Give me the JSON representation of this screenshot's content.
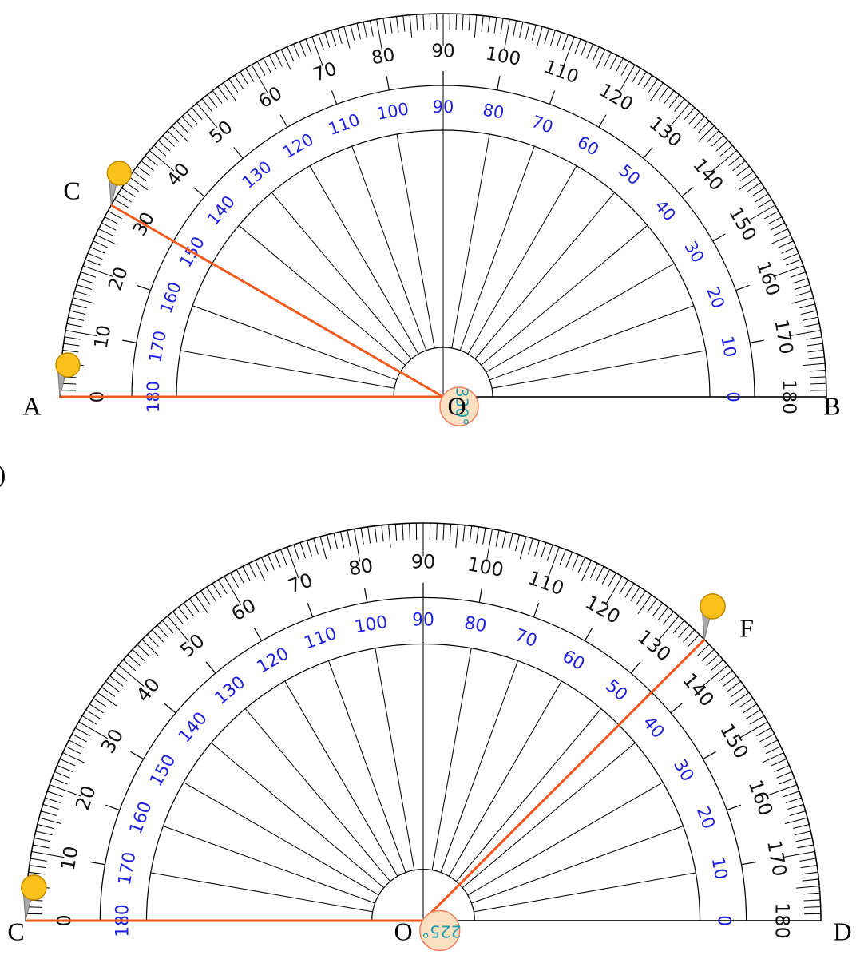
{
  "caption": ")",
  "scale": [
    0,
    10,
    20,
    30,
    40,
    50,
    60,
    70,
    80,
    90,
    100,
    110,
    120,
    130,
    140,
    150,
    160,
    170,
    180
  ],
  "protractors": [
    {
      "labels": [
        "C",
        "A",
        "O",
        "B"
      ],
      "angle_label": "330°"
    },
    {
      "labels": [
        "F",
        "C",
        "O",
        "D"
      ],
      "angle_label": "225°"
    }
  ]
}
